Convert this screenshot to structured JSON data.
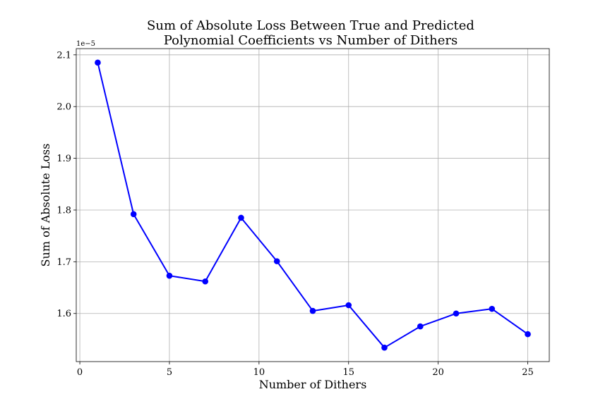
{
  "chart_data": {
    "type": "line",
    "title_lines": [
      "Sum of Absolute Loss Between True and Predicted",
      "Polynomial Coefficients vs Number of Dithers"
    ],
    "xlabel": "Number of Dithers",
    "ylabel": "Sum of Absolute Loss",
    "y_offset_label": "1e−5",
    "x_ticks": [
      0,
      5,
      10,
      15,
      20,
      25
    ],
    "x_tick_labels": [
      "0",
      "5",
      "10",
      "15",
      "20",
      "25"
    ],
    "y_ticks": [
      1.6,
      1.7,
      1.8,
      1.9,
      2.0,
      2.1
    ],
    "y_tick_labels": [
      "1.6",
      "1.7",
      "1.8",
      "1.9",
      "2.0",
      "2.1"
    ],
    "xlim": [
      -0.2,
      26.2
    ],
    "ylim": [
      1.507,
      2.112
    ],
    "grid": true,
    "series": [
      {
        "color": "#0000ff",
        "marker": "circle",
        "x": [
          1,
          3,
          5,
          7,
          9,
          11,
          13,
          15,
          17,
          19,
          21,
          23,
          25
        ],
        "y": [
          2.085,
          1.792,
          1.673,
          1.662,
          1.785,
          1.701,
          1.605,
          1.616,
          1.534,
          1.575,
          1.6,
          1.609,
          1.56
        ]
      }
    ]
  }
}
